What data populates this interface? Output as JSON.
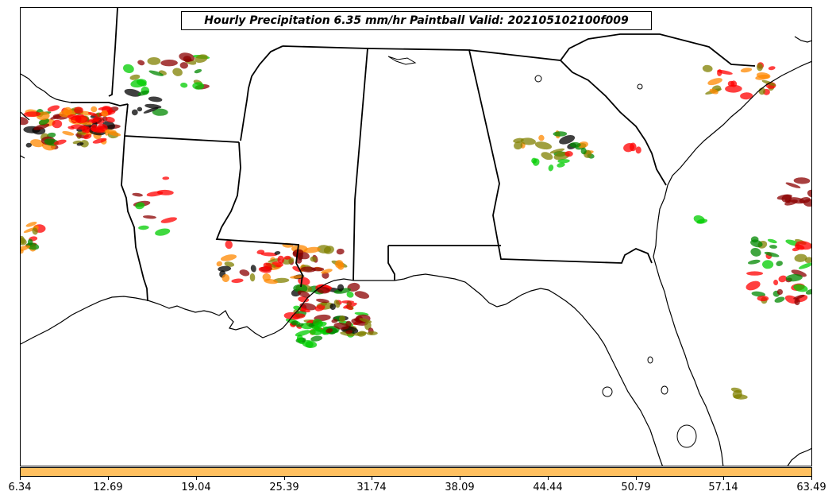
{
  "title": "Hourly Precipitation 6.35 mm/hr Paintball Valid: 202105102100f009",
  "colorbar": {
    "color": "#ffc060",
    "ticks": [
      "6.34",
      "12.69",
      "19.04",
      "25.39",
      "31.74",
      "38.09",
      "44.44",
      "50.79",
      "57.14",
      "63.49"
    ]
  },
  "member_colors": [
    "#ff0000",
    "#008800",
    "#00cc00",
    "#ff8800",
    "#8b0000",
    "#808000",
    "#000000"
  ]
}
